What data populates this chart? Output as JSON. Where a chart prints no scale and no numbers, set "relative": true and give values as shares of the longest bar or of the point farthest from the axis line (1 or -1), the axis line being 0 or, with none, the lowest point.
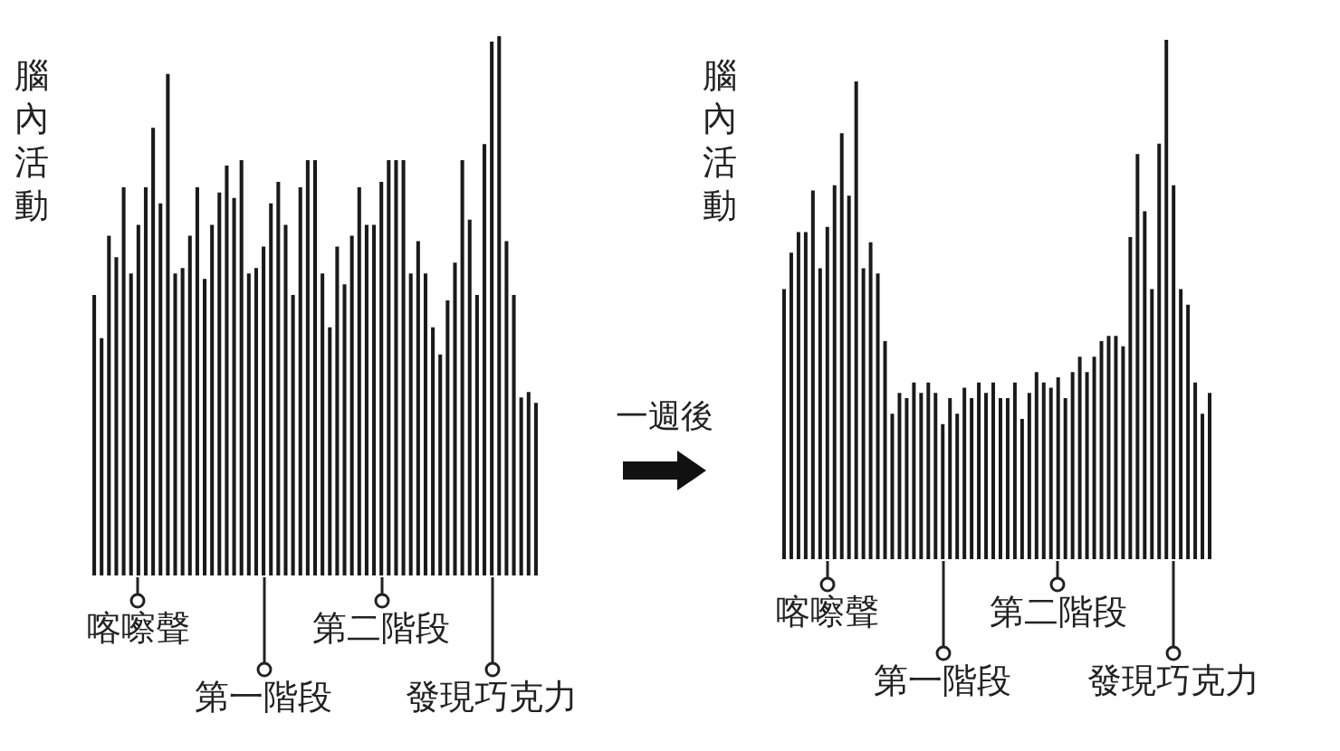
{
  "chart_data": [
    {
      "type": "bar",
      "relative": true,
      "ylabel": "腦內活動",
      "color": "#1a1a1a",
      "categories": [
        null,
        null,
        null,
        null,
        null,
        null,
        "喀嚓聲",
        null,
        null,
        null,
        null,
        null,
        null,
        null,
        null,
        null,
        null,
        null,
        null,
        null,
        null,
        null,
        null,
        "第一階段",
        null,
        null,
        null,
        null,
        null,
        null,
        null,
        null,
        null,
        null,
        null,
        null,
        null,
        null,
        null,
        "第二階段",
        null,
        null,
        null,
        null,
        null,
        null,
        null,
        null,
        null,
        null,
        null,
        null,
        null,
        null,
        "發現巧克力",
        null,
        null,
        null,
        null,
        null,
        null
      ],
      "values": [
        0.52,
        0.44,
        0.63,
        0.59,
        0.72,
        0.56,
        0.65,
        0.72,
        0.83,
        0.69,
        0.93,
        0.56,
        0.57,
        0.63,
        0.72,
        0.55,
        0.65,
        0.71,
        0.76,
        0.7,
        0.77,
        0.56,
        0.57,
        0.61,
        0.69,
        0.73,
        0.65,
        0.52,
        0.72,
        0.77,
        0.77,
        0.56,
        0.46,
        0.61,
        0.54,
        0.63,
        0.72,
        0.65,
        0.65,
        0.73,
        0.77,
        0.77,
        0.77,
        0.56,
        0.62,
        0.56,
        0.46,
        0.41,
        0.51,
        0.58,
        0.77,
        0.66,
        0.52,
        0.8,
        0.99,
        1,
        0.62,
        0.52,
        0.33,
        0.34,
        0.32
      ]
    },
    {
      "type": "bar",
      "relative": true,
      "ylabel": "腦內活動",
      "color": "#1a1a1a",
      "annotations": [
        "一週後"
      ],
      "categories": [
        null,
        null,
        null,
        null,
        null,
        null,
        "喀嚓聲",
        null,
        null,
        null,
        null,
        null,
        null,
        null,
        null,
        null,
        null,
        null,
        null,
        null,
        null,
        null,
        "第一階段",
        null,
        null,
        null,
        null,
        null,
        null,
        null,
        null,
        null,
        null,
        null,
        null,
        null,
        null,
        null,
        "第二階段",
        null,
        null,
        null,
        null,
        null,
        null,
        null,
        null,
        null,
        null,
        null,
        null,
        null,
        null,
        null,
        "發現巧克力",
        null,
        null,
        null,
        null,
        null
      ],
      "values": [
        0.52,
        0.59,
        0.63,
        0.63,
        0.71,
        0.56,
        0.64,
        0.72,
        0.82,
        0.7,
        0.92,
        0.56,
        0.61,
        0.55,
        0.42,
        0.28,
        0.32,
        0.31,
        0.34,
        0.32,
        0.34,
        0.32,
        0.26,
        0.31,
        0.28,
        0.33,
        0.31,
        0.34,
        0.32,
        0.34,
        0.31,
        0.31,
        0.34,
        0.27,
        0.32,
        0.36,
        0.34,
        0.33,
        0.35,
        0.31,
        0.36,
        0.39,
        0.36,
        0.39,
        0.42,
        0.43,
        0.43,
        0.41,
        0.62,
        0.78,
        0.67,
        0.52,
        0.8,
        1,
        0.72,
        0.52,
        0.49,
        0.34,
        0.28,
        0.32
      ]
    }
  ]
}
